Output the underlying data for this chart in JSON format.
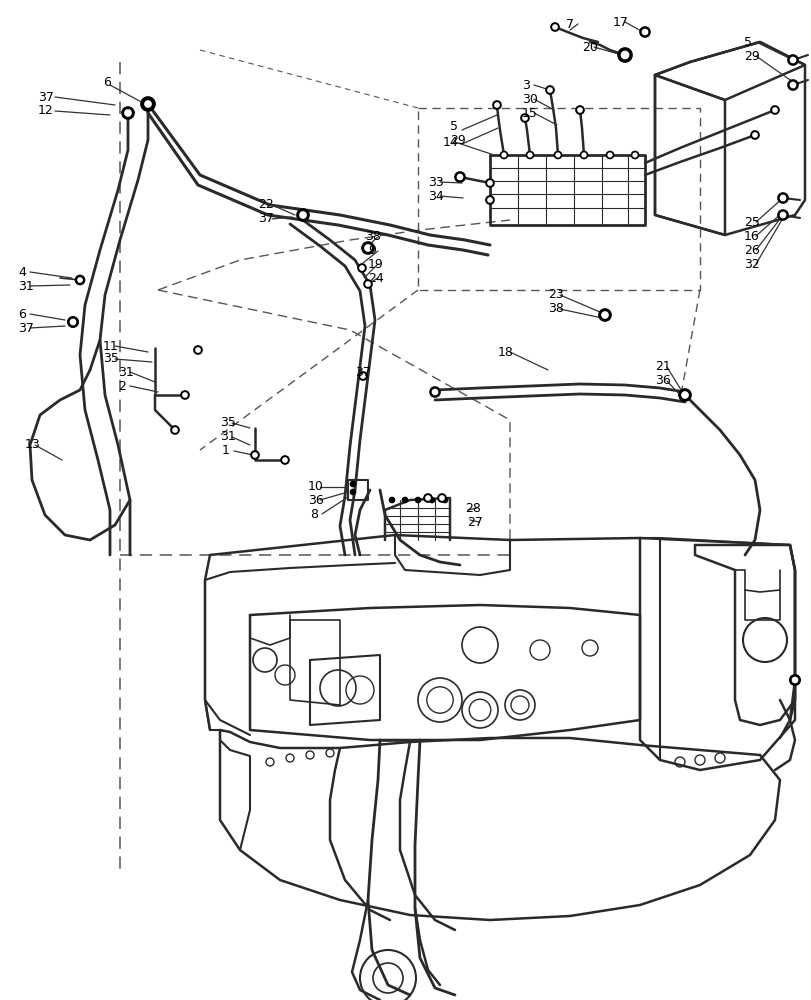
{
  "bg": "#ffffff",
  "lc": "#2a2a2a",
  "dc": "#555555",
  "fw": 8.12,
  "fh": 10.0,
  "dpi": 100,
  "labels": [
    [
      "37",
      38,
      97
    ],
    [
      "12",
      38,
      110
    ],
    [
      "6",
      103,
      82
    ],
    [
      "4",
      18,
      272
    ],
    [
      "31",
      18,
      286
    ],
    [
      "6",
      18,
      314
    ],
    [
      "37",
      18,
      328
    ],
    [
      "13",
      25,
      445
    ],
    [
      "11",
      103,
      346
    ],
    [
      "35",
      103,
      359
    ],
    [
      "31",
      118,
      372
    ],
    [
      "2",
      118,
      386
    ],
    [
      "22",
      258,
      205
    ],
    [
      "37",
      258,
      219
    ],
    [
      "38",
      365,
      237
    ],
    [
      "9",
      368,
      251
    ],
    [
      "19",
      368,
      264
    ],
    [
      "24",
      368,
      278
    ],
    [
      "37",
      355,
      372
    ],
    [
      "35",
      220,
      423
    ],
    [
      "31",
      220,
      437
    ],
    [
      "1",
      222,
      451
    ],
    [
      "10",
      308,
      487
    ],
    [
      "36",
      308,
      500
    ],
    [
      "8",
      310,
      514
    ],
    [
      "28",
      465,
      508
    ],
    [
      "27",
      467,
      522
    ],
    [
      "14",
      443,
      142
    ],
    [
      "5",
      450,
      126
    ],
    [
      "29",
      450,
      140
    ],
    [
      "33",
      428,
      182
    ],
    [
      "34",
      428,
      196
    ],
    [
      "3",
      522,
      85
    ],
    [
      "30",
      522,
      99
    ],
    [
      "15",
      522,
      113
    ],
    [
      "5",
      744,
      42
    ],
    [
      "29",
      744,
      56
    ],
    [
      "7",
      566,
      24
    ],
    [
      "17",
      613,
      22
    ],
    [
      "20",
      582,
      47
    ],
    [
      "23",
      548,
      295
    ],
    [
      "38",
      548,
      309
    ],
    [
      "18",
      498,
      352
    ],
    [
      "21",
      655,
      367
    ],
    [
      "36",
      655,
      381
    ],
    [
      "25",
      744,
      222
    ],
    [
      "16",
      744,
      236
    ],
    [
      "26",
      744,
      250
    ],
    [
      "32",
      744,
      264
    ]
  ]
}
